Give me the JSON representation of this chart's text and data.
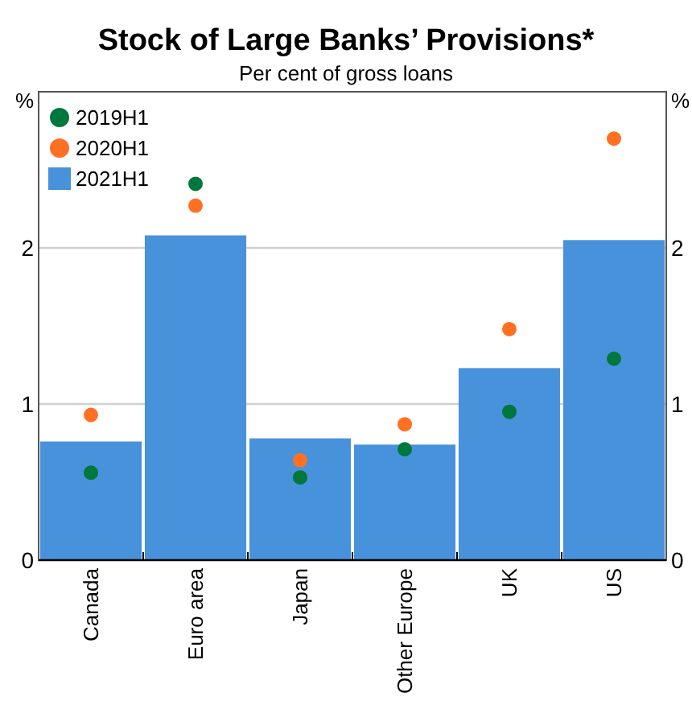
{
  "chart_data": {
    "type": "bar",
    "title": "Stock of Large Banks’ Provisions*",
    "subtitle": "Per cent of gross loans",
    "ylabel": "%",
    "y2label": "%",
    "categories": [
      "Canada",
      "Euro area",
      "Japan",
      "Other Europe",
      "UK",
      "US"
    ],
    "series": [
      {
        "name": "2019H1",
        "type": "scatter",
        "color": "#00773d",
        "values": [
          0.56,
          2.41,
          0.53,
          0.71,
          0.95,
          1.29
        ]
      },
      {
        "name": "2020H1",
        "type": "scatter",
        "color": "#ff7022",
        "values": [
          0.93,
          2.27,
          0.64,
          0.87,
          1.48,
          2.7
        ]
      },
      {
        "name": "2021H1",
        "color": "#4892dc",
        "values": [
          0.76,
          2.08,
          0.78,
          0.74,
          1.23,
          2.05
        ]
      }
    ],
    "ylim": [
      0,
      3
    ],
    "yticks": [
      0,
      1,
      2
    ],
    "y2lim": [
      0,
      3
    ],
    "y2ticks": [
      0,
      1,
      2
    ],
    "grid": "y",
    "legend": "top left",
    "marker": "circle"
  }
}
